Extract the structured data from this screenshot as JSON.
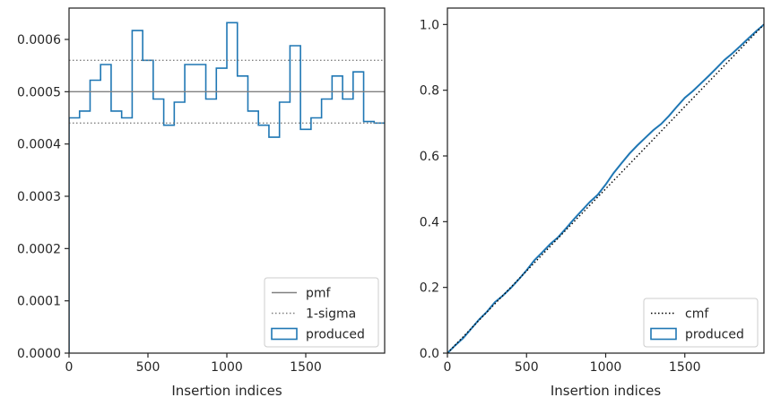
{
  "chart_data": [
    {
      "type": "histogram",
      "xlabel": "Insertion indices",
      "ylabel": "",
      "xlim": [
        0,
        2000
      ],
      "ylim": [
        0,
        0.00066
      ],
      "xticks": [
        0,
        500,
        1000,
        1500
      ],
      "yticks": [
        0,
        0.0001,
        0.0002,
        0.0003,
        0.0004,
        0.0005,
        0.0006
      ],
      "ytick_labels": [
        "0.0000",
        "0.0001",
        "0.0002",
        "0.0003",
        "0.0004",
        "0.0005",
        "0.0006"
      ],
      "bins_start": 0,
      "bin_width": 66.67,
      "series": [
        {
          "name": "produced",
          "style": "step",
          "color": "#1f77b4",
          "values": [
            0.00045,
            0.000463,
            0.000522,
            0.000552,
            0.000463,
            0.00045,
            0.000617,
            0.00056,
            0.000486,
            0.000436,
            0.00048,
            0.000552,
            0.000552,
            0.000486,
            0.000545,
            0.000632,
            0.00053,
            0.000463,
            0.000436,
            0.000413,
            0.00048,
            0.000588,
            0.000428,
            0.00045,
            0.000486,
            0.00053,
            0.000486,
            0.000538,
            0.000443,
            0.00044
          ]
        },
        {
          "name": "pmf",
          "style": "hline",
          "color": "#808080",
          "value": 0.0005
        },
        {
          "name": "1-sigma",
          "style": "hline-dotted",
          "color": "#808080",
          "values": [
            0.00044,
            0.00056
          ]
        }
      ],
      "legend": {
        "location": "lower right",
        "entries": [
          {
            "label": "pmf",
            "kind": "line"
          },
          {
            "label": "1-sigma",
            "kind": "dotted"
          },
          {
            "label": "produced",
            "kind": "patch"
          }
        ]
      }
    },
    {
      "type": "line",
      "xlabel": "Insertion indices",
      "ylabel": "",
      "xlim": [
        0,
        2000
      ],
      "ylim": [
        0,
        1.05
      ],
      "xticks": [
        0,
        500,
        1000,
        1500
      ],
      "yticks": [
        0,
        0.2,
        0.4,
        0.6,
        0.8,
        1.0
      ],
      "ytick_labels": [
        "0.0",
        "0.2",
        "0.4",
        "0.6",
        "0.8",
        "1.0"
      ],
      "series": [
        {
          "name": "produced",
          "style": "solid",
          "color": "#1f77b4",
          "x": [
            0,
            50,
            100,
            150,
            200,
            250,
            300,
            350,
            400,
            450,
            500,
            550,
            600,
            650,
            700,
            750,
            800,
            850,
            900,
            950,
            1000,
            1050,
            1100,
            1150,
            1200,
            1250,
            1300,
            1350,
            1400,
            1450,
            1500,
            1550,
            1600,
            1650,
            1700,
            1750,
            1800,
            1850,
            1900,
            1950,
            2000
          ],
          "y": [
            0,
            0.024,
            0.046,
            0.074,
            0.102,
            0.126,
            0.155,
            0.175,
            0.198,
            0.224,
            0.252,
            0.283,
            0.307,
            0.332,
            0.353,
            0.38,
            0.408,
            0.434,
            0.46,
            0.482,
            0.513,
            0.548,
            0.578,
            0.607,
            0.632,
            0.655,
            0.678,
            0.697,
            0.722,
            0.75,
            0.777,
            0.797,
            0.82,
            0.843,
            0.867,
            0.892,
            0.912,
            0.934,
            0.957,
            0.979,
            1.0
          ]
        },
        {
          "name": "cmf",
          "style": "dotted",
          "color": "#000000",
          "x": [
            0,
            2000
          ],
          "y": [
            0,
            1.0
          ]
        }
      ],
      "legend": {
        "location": "lower right",
        "entries": [
          {
            "label": "cmf",
            "kind": "dotted"
          },
          {
            "label": "produced",
            "kind": "patch"
          }
        ]
      }
    }
  ]
}
